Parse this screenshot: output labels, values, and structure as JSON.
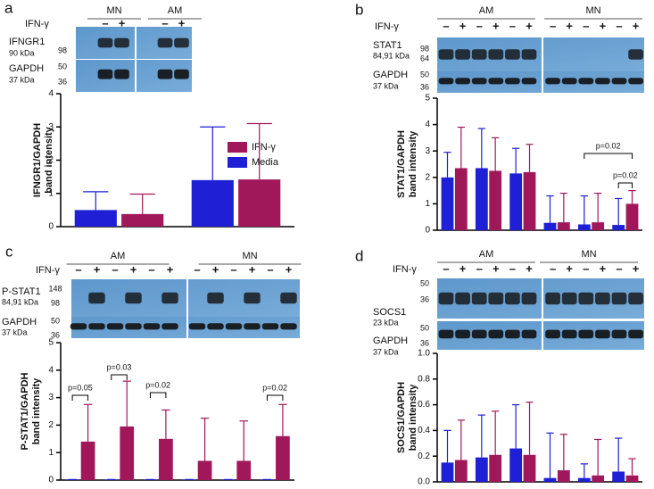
{
  "chart_data": [
    {
      "type": "bar",
      "panel": "a",
      "blot": {
        "groups": [
          "MN",
          "AM"
        ],
        "treatment": "IFN-γ",
        "lanes": [
          "–",
          "+",
          "–",
          "+"
        ],
        "bands": [
          "IFNGR1",
          "90 kDa",
          "GAPDH",
          "37 kDa"
        ],
        "markers": [
          98,
          50,
          36
        ]
      },
      "ylabel": [
        "IFNGR1/GAPDH",
        "band intensity"
      ],
      "categories": [
        null,
        null
      ],
      "series": [
        {
          "name": "Media",
          "color": "#1f1fd6",
          "values": [
            0.5,
            1.4
          ],
          "errors": [
            0.55,
            1.6
          ]
        },
        {
          "name": "IFN-γ",
          "color": "#a0185a",
          "values": [
            0.38,
            1.42
          ],
          "errors": [
            0.6,
            1.68
          ]
        }
      ],
      "ylim": [
        0,
        4
      ],
      "yticks": [
        0,
        1,
        2,
        3,
        4
      ],
      "legend": true,
      "annotations": []
    },
    {
      "type": "bar",
      "panel": "b",
      "blot": {
        "groups": [
          "AM",
          "MN"
        ],
        "treatment": "IFN-γ",
        "lanes": [
          "–",
          "+",
          "–",
          "+",
          "–",
          "+",
          "–",
          "+",
          "–",
          "+",
          "–",
          "+"
        ],
        "bands": [
          "STAT1",
          "84,91 kDa",
          "GAPDH",
          "37 kDa"
        ],
        "markers": [
          98,
          64,
          50,
          36
        ]
      },
      "ylabel": [
        "STAT1/GAPDH",
        "band intensity"
      ],
      "categories": [
        null,
        null,
        null,
        null,
        null,
        null
      ],
      "series": [
        {
          "color": "#1f1fd6",
          "values": [
            2.0,
            2.35,
            2.15,
            0.28,
            0.22,
            0.2
          ],
          "errors": [
            0.95,
            1.5,
            0.95,
            1.02,
            1.08,
            1.0
          ]
        },
        {
          "color": "#a0185a",
          "values": [
            2.35,
            2.25,
            2.2,
            0.3,
            0.3,
            1.0
          ],
          "errors": [
            1.55,
            1.25,
            1.05,
            1.1,
            1.1,
            0.5
          ]
        }
      ],
      "ylim": [
        0,
        5
      ],
      "yticks": [
        0,
        1,
        2,
        3,
        4,
        5
      ],
      "legend": false,
      "annotations": [
        "p=0.02",
        "p=0.02"
      ]
    },
    {
      "type": "bar",
      "panel": "c",
      "blot": {
        "groups": [
          "AM",
          "MN"
        ],
        "treatment": "IFN-γ",
        "lanes": [
          "–",
          "+",
          "–",
          "+",
          "–",
          "+",
          "–",
          "+",
          "–",
          "+",
          "–",
          "+"
        ],
        "bands": [
          "P-STAT1",
          "84,91 kDa",
          "GAPDH",
          "37 kDa"
        ],
        "markers": [
          148,
          98,
          50,
          36
        ]
      },
      "ylabel": [
        "P-STAT1/GAPDH",
        "band intensity"
      ],
      "categories": [
        null,
        null,
        null,
        null,
        null,
        null
      ],
      "series": [
        {
          "color": "#1f1fd6",
          "values": [
            0.02,
            0.02,
            0.02,
            0.02,
            0.02,
            0.02
          ],
          "errors": [
            0,
            0,
            0,
            0,
            0,
            0
          ]
        },
        {
          "color": "#a0185a",
          "values": [
            1.4,
            1.95,
            1.5,
            0.7,
            0.7,
            1.6
          ],
          "errors": [
            1.35,
            1.65,
            1.05,
            1.55,
            1.45,
            1.15
          ]
        }
      ],
      "ylim": [
        0,
        5
      ],
      "yticks": [
        0,
        1,
        2,
        3,
        4,
        5
      ],
      "legend": false,
      "annotations": [
        "p=0.05",
        "p=0.03",
        "p=0.02",
        "p=0.02"
      ]
    },
    {
      "type": "bar",
      "panel": "d",
      "blot": {
        "groups": [
          "AM",
          "MN"
        ],
        "treatment": "IFN-γ",
        "lanes": [
          "–",
          "+",
          "–",
          "+",
          "–",
          "+",
          "–",
          "+",
          "–",
          "+",
          "–",
          "+"
        ],
        "bands": [
          "SOCS1",
          "23 kDa",
          "GAPDH",
          "37 kDa"
        ],
        "markers": [
          50,
          36,
          50,
          36
        ]
      },
      "ylabel": [
        "SOCS1/GAPDH",
        "band intensity"
      ],
      "categories": [
        null,
        null,
        null,
        null,
        null,
        null
      ],
      "series": [
        {
          "color": "#1f1fd6",
          "values": [
            0.15,
            0.19,
            0.26,
            0.03,
            0.03,
            0.08
          ],
          "errors": [
            0.25,
            0.33,
            0.34,
            0.35,
            0.11,
            0.26
          ]
        },
        {
          "color": "#a0185a",
          "values": [
            0.17,
            0.21,
            0.21,
            0.09,
            0.05,
            0.05
          ],
          "errors": [
            0.31,
            0.34,
            0.41,
            0.28,
            0.28,
            0.13
          ]
        }
      ],
      "ylim": [
        0,
        1
      ],
      "yticks": [
        {
          "value": 0,
          "label": "0.0"
        },
        0.2,
        0.4,
        0.6,
        0.8,
        {
          "value": 1,
          "label": "1.0"
        }
      ],
      "legend": false,
      "annotations": []
    }
  ]
}
